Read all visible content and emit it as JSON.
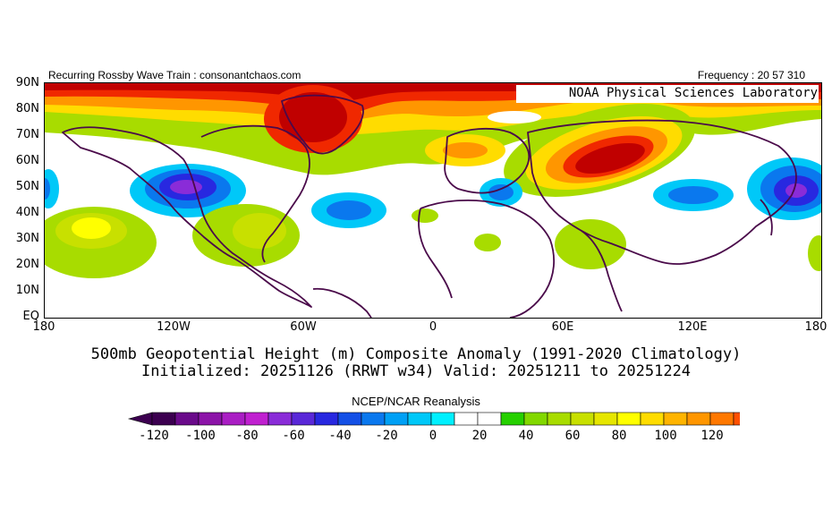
{
  "header": {
    "left_text": "Recurring Rossby Wave Train : consonantchaos.com",
    "right_text": "Frequency : 20 57 310",
    "org_label": "NOAA Physical Sciences Laboratory"
  },
  "axes": {
    "lat_labels": [
      "90N",
      "80N",
      "70N",
      "60N",
      "50N",
      "40N",
      "30N",
      "20N",
      "10N",
      "EQ"
    ],
    "lon_labels": [
      "180",
      "120W",
      "60W",
      "0",
      "60E",
      "120E",
      "180"
    ]
  },
  "titles": {
    "line1": "500mb Geopotential Height (m) Composite Anomaly (1991-2020 Climatology)",
    "line2": "Initialized: 20251126 (RRWT w34) Valid: 20251211 to 20251224"
  },
  "source_label": "NCEP/NCAR Reanalysis",
  "colorbar": {
    "labels": [
      "-120",
      "-100",
      "-80",
      "-60",
      "-40",
      "-20",
      "0",
      "20",
      "40",
      "60",
      "80",
      "100",
      "120"
    ],
    "low_color": "#3c0050",
    "high_color": "#c00000",
    "colors": [
      "#3c0050",
      "#6a0a8a",
      "#8c14a8",
      "#aa1ec4",
      "#c020d0",
      "#8a2cd8",
      "#5a28d8",
      "#2828e0",
      "#1450e6",
      "#0a78ee",
      "#00a0f5",
      "#00c8f8",
      "#00f0ff",
      "#ffffff",
      "#ffffff",
      "#26d000",
      "#82d800",
      "#a8dc00",
      "#c8e000",
      "#e6e600",
      "#ffff00",
      "#ffdc00",
      "#ffb400",
      "#ff9600",
      "#ff7800",
      "#ff5000",
      "#f02800",
      "#c00000"
    ]
  }
}
